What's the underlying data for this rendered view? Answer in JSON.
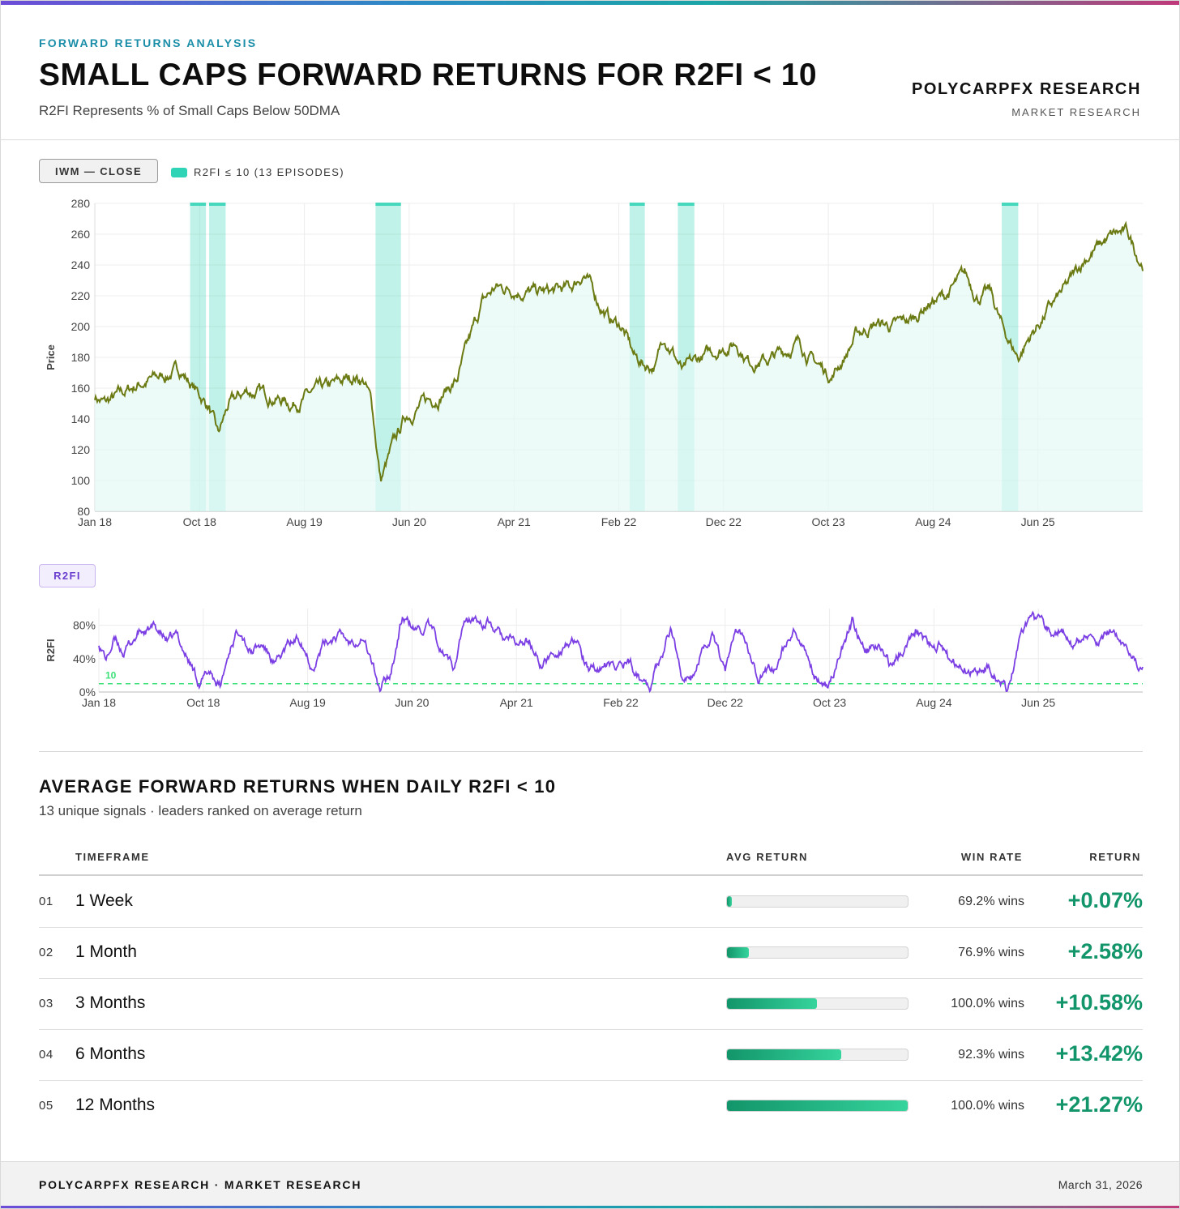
{
  "header": {
    "kicker": "FORWARD RETURNS ANALYSIS",
    "title": "SMALL CAPS FORWARD RETURNS FOR R2FI < 10",
    "subtitle": "R2FI Represents % of Small Caps Below 50DMA",
    "brand": "POLYCARPFX RESEARCH",
    "brand_sub": "MARKET RESEARCH"
  },
  "colors": {
    "accent": "#1a8ea8",
    "price_line": "#6b7a12",
    "episode_band": "#2fd3b5",
    "r2fi_line": "#7b3fe4",
    "threshold": "#3ee07a",
    "positive": "#12956a"
  },
  "chart_data": [
    {
      "type": "line",
      "pill": "IWM — CLOSE",
      "legend": "R2FI ≤ 10 (13 EPISODES)",
      "series": [
        {
          "name": "IWM — CLOSE"
        }
      ],
      "title": "",
      "xlabel": "",
      "ylabel": "Price",
      "ylim": [
        80,
        280
      ],
      "yticks": [
        80,
        100,
        120,
        140,
        160,
        180,
        200,
        220,
        240,
        260,
        280
      ],
      "xticks": [
        "Jan 18",
        "Oct 18",
        "Aug 19",
        "Jun 20",
        "Apr 21",
        "Feb 22",
        "Dec 22",
        "Oct 23",
        "Aug 24",
        "Jun 25"
      ],
      "xrange": [
        2018.0,
        2026.25
      ],
      "episode_bands": [
        [
          2018.75,
          2018.875
        ],
        [
          2018.9,
          2019.03
        ],
        [
          2020.21,
          2020.41
        ],
        [
          2022.21,
          2022.33
        ],
        [
          2022.59,
          2022.72
        ],
        [
          2025.14,
          2025.27
        ]
      ],
      "anchors": [
        [
          2018.0,
          155
        ],
        [
          2018.08,
          150
        ],
        [
          2018.2,
          155
        ],
        [
          2018.35,
          163
        ],
        [
          2018.55,
          168
        ],
        [
          2018.68,
          172
        ],
        [
          2018.78,
          160
        ],
        [
          2018.9,
          148
        ],
        [
          2018.97,
          128
        ],
        [
          2019.05,
          148
        ],
        [
          2019.2,
          158
        ],
        [
          2019.4,
          155
        ],
        [
          2019.55,
          150
        ],
        [
          2019.7,
          156
        ],
        [
          2019.85,
          160
        ],
        [
          2020.05,
          168
        ],
        [
          2020.12,
          165
        ],
        [
          2020.18,
          150
        ],
        [
          2020.25,
          100
        ],
        [
          2020.33,
          118
        ],
        [
          2020.45,
          142
        ],
        [
          2020.55,
          148
        ],
        [
          2020.7,
          155
        ],
        [
          2020.85,
          165
        ],
        [
          2020.95,
          190
        ],
        [
          2021.05,
          215
        ],
        [
          2021.15,
          225
        ],
        [
          2021.3,
          225
        ],
        [
          2021.45,
          222
        ],
        [
          2021.6,
          222
        ],
        [
          2021.75,
          225
        ],
        [
          2021.85,
          235
        ],
        [
          2021.95,
          218
        ],
        [
          2022.05,
          205
        ],
        [
          2022.15,
          200
        ],
        [
          2022.25,
          180
        ],
        [
          2022.33,
          175
        ],
        [
          2022.42,
          175
        ],
        [
          2022.48,
          195
        ],
        [
          2022.55,
          185
        ],
        [
          2022.63,
          170
        ],
        [
          2022.75,
          178
        ],
        [
          2022.9,
          185
        ],
        [
          2023.05,
          190
        ],
        [
          2023.15,
          178
        ],
        [
          2023.3,
          178
        ],
        [
          2023.45,
          185
        ],
        [
          2023.55,
          190
        ],
        [
          2023.65,
          178
        ],
        [
          2023.8,
          168
        ],
        [
          2023.9,
          180
        ],
        [
          2024.0,
          195
        ],
        [
          2024.15,
          202
        ],
        [
          2024.3,
          200
        ],
        [
          2024.45,
          205
        ],
        [
          2024.55,
          215
        ],
        [
          2024.7,
          220
        ],
        [
          2024.85,
          233
        ],
        [
          2024.95,
          220
        ],
        [
          2025.05,
          222
        ],
        [
          2025.15,
          198
        ],
        [
          2025.27,
          180
        ],
        [
          2025.35,
          192
        ],
        [
          2025.5,
          210
        ],
        [
          2025.65,
          225
        ],
        [
          2025.8,
          245
        ],
        [
          2025.95,
          255
        ],
        [
          2026.05,
          260
        ],
        [
          2026.13,
          260
        ],
        [
          2026.22,
          245
        ],
        [
          2026.25,
          242
        ]
      ]
    },
    {
      "type": "line",
      "pill": "R2FI",
      "series": [
        {
          "name": "R2FI"
        }
      ],
      "title": "",
      "xlabel": "",
      "ylabel": "R2FI",
      "ylim": [
        0,
        100
      ],
      "yticks": [
        "0%",
        "40%",
        "80%"
      ],
      "threshold": 10,
      "threshold_label": "10",
      "xticks": [
        "Jan 18",
        "Oct 18",
        "Aug 19",
        "Jun 20",
        "Apr 21",
        "Feb 22",
        "Dec 22",
        "Oct 23",
        "Aug 24",
        "Jun 25"
      ],
      "xrange": [
        2018.0,
        2026.25
      ],
      "anchors": [
        [
          2018.0,
          60
        ],
        [
          2018.06,
          40
        ],
        [
          2018.12,
          62
        ],
        [
          2018.2,
          48
        ],
        [
          2018.32,
          72
        ],
        [
          2018.45,
          75
        ],
        [
          2018.55,
          58
        ],
        [
          2018.62,
          65
        ],
        [
          2018.72,
          35
        ],
        [
          2018.8,
          10
        ],
        [
          2018.88,
          25
        ],
        [
          2018.96,
          5
        ],
        [
          2019.05,
          60
        ],
        [
          2019.12,
          80
        ],
        [
          2019.2,
          50
        ],
        [
          2019.3,
          55
        ],
        [
          2019.4,
          30
        ],
        [
          2019.5,
          55
        ],
        [
          2019.6,
          65
        ],
        [
          2019.68,
          35
        ],
        [
          2019.78,
          58
        ],
        [
          2019.88,
          70
        ],
        [
          2019.98,
          60
        ],
        [
          2020.08,
          72
        ],
        [
          2020.15,
          40
        ],
        [
          2020.22,
          2
        ],
        [
          2020.3,
          20
        ],
        [
          2020.4,
          90
        ],
        [
          2020.5,
          72
        ],
        [
          2020.6,
          78
        ],
        [
          2020.7,
          50
        ],
        [
          2020.8,
          30
        ],
        [
          2020.88,
          82
        ],
        [
          2020.98,
          86
        ],
        [
          2021.08,
          82
        ],
        [
          2021.18,
          65
        ],
        [
          2021.3,
          55
        ],
        [
          2021.4,
          60
        ],
        [
          2021.5,
          32
        ],
        [
          2021.6,
          45
        ],
        [
          2021.7,
          62
        ],
        [
          2021.8,
          50
        ],
        [
          2021.88,
          20
        ],
        [
          2021.98,
          32
        ],
        [
          2022.08,
          25
        ],
        [
          2022.18,
          40
        ],
        [
          2022.28,
          15
        ],
        [
          2022.36,
          10
        ],
        [
          2022.45,
          50
        ],
        [
          2022.52,
          78
        ],
        [
          2022.6,
          25
        ],
        [
          2022.68,
          10
        ],
        [
          2022.78,
          60
        ],
        [
          2022.86,
          70
        ],
        [
          2022.95,
          30
        ],
        [
          2023.05,
          72
        ],
        [
          2023.12,
          65
        ],
        [
          2023.22,
          20
        ],
        [
          2023.32,
          25
        ],
        [
          2023.42,
          55
        ],
        [
          2023.5,
          70
        ],
        [
          2023.58,
          40
        ],
        [
          2023.66,
          20
        ],
        [
          2023.76,
          12
        ],
        [
          2023.86,
          45
        ],
        [
          2023.96,
          85
        ],
        [
          2024.06,
          50
        ],
        [
          2024.16,
          55
        ],
        [
          2024.26,
          30
        ],
        [
          2024.36,
          55
        ],
        [
          2024.46,
          80
        ],
        [
          2024.56,
          55
        ],
        [
          2024.66,
          60
        ],
        [
          2024.74,
          30
        ],
        [
          2024.84,
          35
        ],
        [
          2024.92,
          22
        ],
        [
          2025.02,
          30
        ],
        [
          2025.1,
          20
        ],
        [
          2025.18,
          2
        ],
        [
          2025.28,
          65
        ],
        [
          2025.38,
          80
        ],
        [
          2025.5,
          70
        ],
        [
          2025.6,
          78
        ],
        [
          2025.7,
          50
        ],
        [
          2025.8,
          72
        ],
        [
          2025.9,
          50
        ],
        [
          2026.0,
          70
        ],
        [
          2026.08,
          65
        ],
        [
          2026.16,
          55
        ],
        [
          2026.25,
          30
        ]
      ]
    }
  ],
  "returns": {
    "title": "AVERAGE FORWARD RETURNS WHEN DAILY R2FI < 10",
    "subtitle": "13 unique signals · leaders ranked on average return",
    "headers": {
      "timeframe": "TIMEFRAME",
      "avg_return": "AVG RETURN",
      "win_rate": "WIN RATE",
      "return": "RETURN"
    },
    "bar_max_percent": 21.27,
    "rows": [
      {
        "idx": "01",
        "timeframe": "1 Week",
        "win_rate": "69.2% wins",
        "return_text": "+0.07%",
        "value": 0.07
      },
      {
        "idx": "02",
        "timeframe": "1 Month",
        "win_rate": "76.9% wins",
        "return_text": "+2.58%",
        "value": 2.58
      },
      {
        "idx": "03",
        "timeframe": "3 Months",
        "win_rate": "100.0% wins",
        "return_text": "+10.58%",
        "value": 10.58
      },
      {
        "idx": "04",
        "timeframe": "6 Months",
        "win_rate": "92.3% wins",
        "return_text": "+13.42%",
        "value": 13.42
      },
      {
        "idx": "05",
        "timeframe": "12 Months",
        "win_rate": "100.0% wins",
        "return_text": "+21.27%",
        "value": 21.27
      }
    ]
  },
  "footer": {
    "left": "POLYCARPFX RESEARCH · MARKET RESEARCH",
    "right": "March 31, 2026"
  }
}
